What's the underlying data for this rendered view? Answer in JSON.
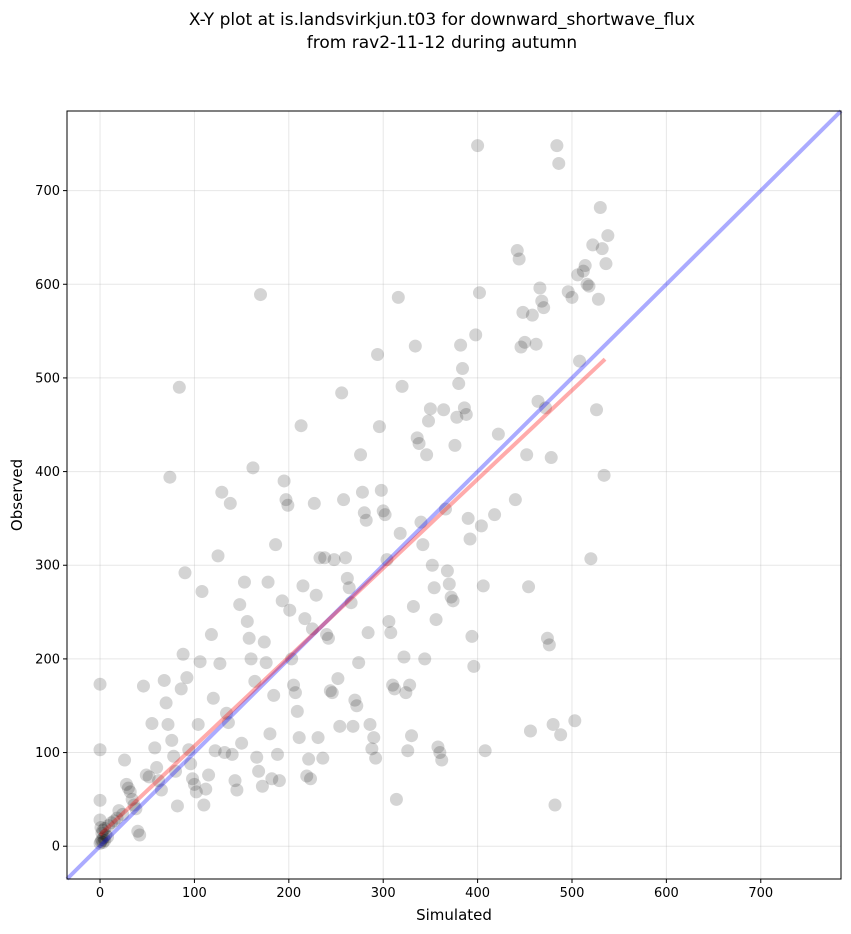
{
  "chart_data": {
    "type": "scatter",
    "title_lines": [
      "X-Y plot at is.landsvirkjun.t03 for downward_shortwave_flux",
      "from rav2-11-12 during autumn"
    ],
    "xlabel": "Simulated",
    "ylabel": "Observed",
    "xlim": [
      -35,
      785
    ],
    "ylim": [
      -35,
      785
    ],
    "xticks": [
      0,
      100,
      200,
      300,
      400,
      500,
      600,
      700
    ],
    "yticks": [
      0,
      100,
      200,
      300,
      400,
      500,
      600,
      700
    ],
    "grid": true,
    "point_color": "#000000",
    "point_opacity": 0.17,
    "one_to_one_line": {
      "color": "#0000ff",
      "opacity": 0.33,
      "from": [
        -35,
        -35
      ],
      "to": [
        785,
        785
      ]
    },
    "regression_line": {
      "color": "#ff0000",
      "opacity": 0.33,
      "from": [
        0,
        12
      ],
      "to": [
        535,
        520
      ]
    },
    "points": [
      [
        0,
        3
      ],
      [
        1,
        5
      ],
      [
        2,
        7
      ],
      [
        3,
        4
      ],
      [
        4,
        9
      ],
      [
        5,
        6
      ],
      [
        6,
        12
      ],
      [
        2,
        14
      ],
      [
        1,
        20
      ],
      [
        3,
        17
      ],
      [
        8,
        10
      ],
      [
        0,
        28
      ],
      [
        0,
        49
      ],
      [
        0,
        103
      ],
      [
        0,
        173
      ],
      [
        5,
        19
      ],
      [
        9,
        22
      ],
      [
        12,
        25
      ],
      [
        15,
        27
      ],
      [
        18,
        30
      ],
      [
        20,
        38
      ],
      [
        24,
        34
      ],
      [
        26,
        92
      ],
      [
        28,
        66
      ],
      [
        30,
        62
      ],
      [
        32,
        58
      ],
      [
        34,
        50
      ],
      [
        36,
        44
      ],
      [
        38,
        40
      ],
      [
        40,
        16
      ],
      [
        42,
        12
      ],
      [
        46,
        171
      ],
      [
        49,
        76
      ],
      [
        52,
        74
      ],
      [
        55,
        131
      ],
      [
        58,
        105
      ],
      [
        60,
        84
      ],
      [
        62,
        70
      ],
      [
        65,
        60
      ],
      [
        68,
        177
      ],
      [
        70,
        153
      ],
      [
        72,
        130
      ],
      [
        74,
        394
      ],
      [
        76,
        113
      ],
      [
        78,
        96
      ],
      [
        80,
        80
      ],
      [
        82,
        43
      ],
      [
        84,
        490
      ],
      [
        86,
        168
      ],
      [
        88,
        205
      ],
      [
        90,
        292
      ],
      [
        92,
        180
      ],
      [
        94,
        103
      ],
      [
        96,
        88
      ],
      [
        98,
        72
      ],
      [
        100,
        66
      ],
      [
        102,
        58
      ],
      [
        104,
        130
      ],
      [
        106,
        197
      ],
      [
        108,
        272
      ],
      [
        110,
        44
      ],
      [
        112,
        61
      ],
      [
        115,
        76
      ],
      [
        118,
        226
      ],
      [
        120,
        158
      ],
      [
        122,
        102
      ],
      [
        125,
        310
      ],
      [
        127,
        195
      ],
      [
        129,
        378
      ],
      [
        132,
        100
      ],
      [
        134,
        142
      ],
      [
        136,
        132
      ],
      [
        138,
        366
      ],
      [
        140,
        98
      ],
      [
        143,
        70
      ],
      [
        145,
        60
      ],
      [
        148,
        258
      ],
      [
        150,
        110
      ],
      [
        153,
        282
      ],
      [
        156,
        240
      ],
      [
        158,
        222
      ],
      [
        160,
        200
      ],
      [
        162,
        404
      ],
      [
        164,
        176
      ],
      [
        166,
        95
      ],
      [
        168,
        80
      ],
      [
        170,
        589
      ],
      [
        172,
        64
      ],
      [
        174,
        218
      ],
      [
        176,
        196
      ],
      [
        178,
        282
      ],
      [
        180,
        120
      ],
      [
        182,
        72
      ],
      [
        184,
        161
      ],
      [
        186,
        322
      ],
      [
        188,
        98
      ],
      [
        190,
        70
      ],
      [
        193,
        262
      ],
      [
        195,
        390
      ],
      [
        197,
        370
      ],
      [
        199,
        364
      ],
      [
        201,
        252
      ],
      [
        203,
        200
      ],
      [
        205,
        172
      ],
      [
        207,
        164
      ],
      [
        209,
        144
      ],
      [
        211,
        116
      ],
      [
        213,
        449
      ],
      [
        215,
        278
      ],
      [
        217,
        243
      ],
      [
        219,
        75
      ],
      [
        221,
        93
      ],
      [
        223,
        72
      ],
      [
        225,
        232
      ],
      [
        227,
        366
      ],
      [
        229,
        268
      ],
      [
        231,
        116
      ],
      [
        233,
        308
      ],
      [
        236,
        94
      ],
      [
        238,
        308
      ],
      [
        240,
        226
      ],
      [
        242,
        222
      ],
      [
        244,
        166
      ],
      [
        246,
        164
      ],
      [
        248,
        306
      ],
      [
        252,
        179
      ],
      [
        254,
        128
      ],
      [
        256,
        484
      ],
      [
        258,
        370
      ],
      [
        260,
        308
      ],
      [
        262,
        286
      ],
      [
        264,
        276
      ],
      [
        266,
        260
      ],
      [
        268,
        128
      ],
      [
        270,
        156
      ],
      [
        272,
        150
      ],
      [
        274,
        196
      ],
      [
        276,
        418
      ],
      [
        278,
        378
      ],
      [
        280,
        356
      ],
      [
        282,
        348
      ],
      [
        284,
        228
      ],
      [
        286,
        130
      ],
      [
        288,
        104
      ],
      [
        290,
        116
      ],
      [
        292,
        94
      ],
      [
        294,
        525
      ],
      [
        296,
        448
      ],
      [
        298,
        380
      ],
      [
        300,
        358
      ],
      [
        302,
        354
      ],
      [
        304,
        306
      ],
      [
        306,
        240
      ],
      [
        308,
        228
      ],
      [
        310,
        172
      ],
      [
        312,
        168
      ],
      [
        314,
        50
      ],
      [
        316,
        586
      ],
      [
        318,
        334
      ],
      [
        320,
        491
      ],
      [
        322,
        202
      ],
      [
        324,
        164
      ],
      [
        326,
        102
      ],
      [
        328,
        172
      ],
      [
        330,
        118
      ],
      [
        332,
        256
      ],
      [
        334,
        534
      ],
      [
        336,
        436
      ],
      [
        338,
        430
      ],
      [
        340,
        346
      ],
      [
        342,
        322
      ],
      [
        344,
        200
      ],
      [
        346,
        418
      ],
      [
        348,
        454
      ],
      [
        350,
        467
      ],
      [
        352,
        300
      ],
      [
        354,
        276
      ],
      [
        356,
        242
      ],
      [
        358,
        106
      ],
      [
        360,
        100
      ],
      [
        362,
        92
      ],
      [
        364,
        466
      ],
      [
        366,
        360
      ],
      [
        368,
        294
      ],
      [
        370,
        280
      ],
      [
        372,
        266
      ],
      [
        374,
        262
      ],
      [
        376,
        428
      ],
      [
        378,
        458
      ],
      [
        380,
        494
      ],
      [
        382,
        535
      ],
      [
        384,
        510
      ],
      [
        386,
        468
      ],
      [
        388,
        461
      ],
      [
        390,
        350
      ],
      [
        392,
        328
      ],
      [
        394,
        224
      ],
      [
        396,
        192
      ],
      [
        398,
        546
      ],
      [
        400,
        748
      ],
      [
        402,
        591
      ],
      [
        404,
        342
      ],
      [
        406,
        278
      ],
      [
        408,
        102
      ],
      [
        418,
        354
      ],
      [
        422,
        440
      ],
      [
        440,
        370
      ],
      [
        442,
        636
      ],
      [
        444,
        627
      ],
      [
        446,
        533
      ],
      [
        448,
        570
      ],
      [
        450,
        538
      ],
      [
        452,
        418
      ],
      [
        454,
        277
      ],
      [
        456,
        123
      ],
      [
        458,
        567
      ],
      [
        462,
        536
      ],
      [
        464,
        475
      ],
      [
        466,
        596
      ],
      [
        468,
        582
      ],
      [
        470,
        575
      ],
      [
        472,
        468
      ],
      [
        474,
        222
      ],
      [
        476,
        215
      ],
      [
        478,
        415
      ],
      [
        480,
        130
      ],
      [
        482,
        44
      ],
      [
        484,
        748
      ],
      [
        486,
        729
      ],
      [
        488,
        119
      ],
      [
        496,
        592
      ],
      [
        500,
        586
      ],
      [
        503,
        134
      ],
      [
        506,
        610
      ],
      [
        508,
        518
      ],
      [
        512,
        614
      ],
      [
        514,
        620
      ],
      [
        516,
        600
      ],
      [
        518,
        598
      ],
      [
        520,
        307
      ],
      [
        522,
        642
      ],
      [
        526,
        466
      ],
      [
        528,
        584
      ],
      [
        530,
        682
      ],
      [
        532,
        638
      ],
      [
        534,
        396
      ],
      [
        536,
        622
      ],
      [
        538,
        652
      ]
    ]
  }
}
